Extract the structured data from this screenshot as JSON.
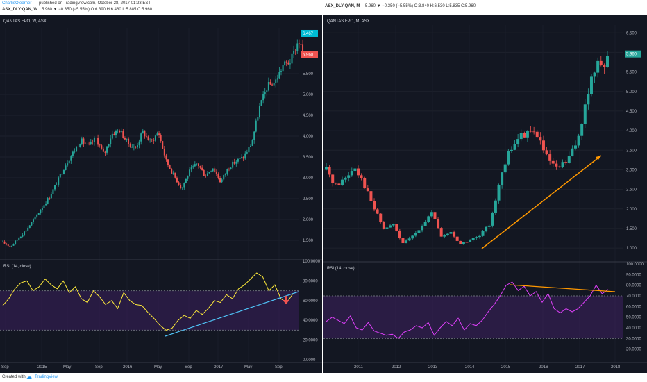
{
  "header": {
    "author": "CharlieOlearner",
    "published": "published on TradingView.com, October 28, 2017 01:23 EST",
    "left_ticker": "ASX_DLY:QAN, W",
    "left_quote": "5.960 ▼ −0.350 (−5.55%) O:6.390 H:6.460 L:5.885 C:5.960",
    "right_ticker": "ASX_DLY:QAN, M",
    "right_quote": "5.960 ▼ −0.350 (−5.55%) O:3.840 H:6.530 L:5.835 C:5.960"
  },
  "footer": {
    "created_with": "Created with",
    "brand": "TradingView"
  },
  "colors": {
    "background": "#131722",
    "up": "#26a69a",
    "down": "#ef5350",
    "rsi_left": "#ffeb3b",
    "rsi_right": "#e040fb",
    "trend_blue": "#4fc3f7",
    "trend_orange": "#ff9800",
    "rsi_band": "#3a1f5c"
  },
  "chart_data": [
    {
      "type": "candlestick",
      "title": "QANTAS FPO, W, ASX",
      "timeframe": "Weekly",
      "ylim": [
        1.1,
        6.6
      ],
      "y_ticks": [
        "1.500",
        "2.000",
        "2.500",
        "3.000",
        "3.500",
        "4.000",
        "4.500",
        "5.000",
        "5.500"
      ],
      "price_labels": {
        "high": "6.467",
        "last": "5.960"
      },
      "x_ticks": [
        "Sep",
        "2015",
        "May",
        "Sep",
        "2016",
        "May",
        "Sep",
        "2017",
        "May",
        "Sep"
      ],
      "x_range": [
        "2014-08",
        "2017-10"
      ],
      "close_path": [
        [
          "2014-08",
          1.45
        ],
        [
          "2014-09",
          1.35
        ],
        [
          "2014-11",
          1.75
        ],
        [
          "2014-12",
          2.0
        ],
        [
          "2015-02",
          2.55
        ],
        [
          "2015-03",
          2.9
        ],
        [
          "2015-04",
          3.3
        ],
        [
          "2015-05",
          3.6
        ],
        [
          "2015-06",
          3.9
        ],
        [
          "2015-07",
          3.75
        ],
        [
          "2015-08",
          3.95
        ],
        [
          "2015-09",
          3.55
        ],
        [
          "2015-10",
          4.05
        ],
        [
          "2015-11",
          4.15
        ],
        [
          "2015-12",
          3.85
        ],
        [
          "2016-01",
          3.7
        ],
        [
          "2016-02",
          4.1
        ],
        [
          "2016-03",
          3.85
        ],
        [
          "2016-04",
          4.1
        ],
        [
          "2016-05",
          3.4
        ],
        [
          "2016-06",
          3.05
        ],
        [
          "2016-07",
          2.75
        ],
        [
          "2016-08",
          3.15
        ],
        [
          "2016-09",
          3.35
        ],
        [
          "2016-10",
          3.05
        ],
        [
          "2016-11",
          3.25
        ],
        [
          "2016-12",
          2.9
        ],
        [
          "2017-01",
          3.25
        ],
        [
          "2017-02",
          3.4
        ],
        [
          "2017-03",
          3.5
        ],
        [
          "2017-04",
          3.85
        ],
        [
          "2017-05",
          4.7
        ],
        [
          "2017-06",
          5.2
        ],
        [
          "2017-07",
          5.3
        ],
        [
          "2017-08",
          5.7
        ],
        [
          "2017-09",
          5.8
        ],
        [
          "2017-10",
          6.3
        ],
        [
          "2017-10-20",
          5.96
        ]
      ],
      "rsi": {
        "label": "RSI (14, close)",
        "ylim": [
          0,
          100
        ],
        "y_ticks": [
          "0.0000",
          "20.0000",
          "40.0000",
          "60.0000",
          "80.0000",
          "100.0000"
        ],
        "band": [
          30,
          70
        ],
        "values": [
          55,
          62,
          72,
          78,
          80,
          70,
          74,
          82,
          76,
          72,
          80,
          68,
          74,
          62,
          58,
          70,
          64,
          56,
          60,
          52,
          68,
          60,
          56,
          55,
          48,
          42,
          35,
          30,
          32,
          40,
          45,
          42,
          50,
          46,
          52,
          60,
          58,
          66,
          62,
          72,
          76,
          82,
          88,
          84,
          70,
          76,
          62,
          58,
          67
        ],
        "annotation": "rising trendline from 2016 low"
      }
    },
    {
      "type": "candlestick",
      "title": "QANTAS FPO, M, ASX",
      "timeframe": "Monthly",
      "ylim": [
        0.7,
        6.7
      ],
      "y_ticks": [
        "1.000",
        "1.500",
        "2.000",
        "2.500",
        "3.000",
        "3.500",
        "4.000",
        "4.500",
        "5.000",
        "5.500",
        "6.000",
        "6.500"
      ],
      "price_labels": {
        "last": "5.960"
      },
      "x_ticks": [
        "2011",
        "2012",
        "2013",
        "2014",
        "2015",
        "2016",
        "2017",
        "2018"
      ],
      "x_range": [
        "2010-06",
        "2018-03"
      ],
      "close_path": [
        [
          "2010-06",
          3.0
        ],
        [
          "2010-09",
          2.6
        ],
        [
          "2010-12",
          2.8
        ],
        [
          "2011-03",
          3.1
        ],
        [
          "2011-06",
          2.6
        ],
        [
          "2011-09",
          2.0
        ],
        [
          "2011-12",
          1.5
        ],
        [
          "2012-03",
          1.6
        ],
        [
          "2012-06",
          1.1
        ],
        [
          "2012-09",
          1.3
        ],
        [
          "2012-12",
          1.6
        ],
        [
          "2013-03",
          1.9
        ],
        [
          "2013-06",
          1.3
        ],
        [
          "2013-09",
          1.4
        ],
        [
          "2013-12",
          1.1
        ],
        [
          "2014-03",
          1.2
        ],
        [
          "2014-06",
          1.3
        ],
        [
          "2014-09",
          1.6
        ],
        [
          "2014-12",
          2.6
        ],
        [
          "2015-03",
          3.4
        ],
        [
          "2015-06",
          3.8
        ],
        [
          "2015-09",
          4.0
        ],
        [
          "2015-12",
          3.9
        ],
        [
          "2016-03",
          3.3
        ],
        [
          "2016-06",
          3.0
        ],
        [
          "2016-09",
          3.2
        ],
        [
          "2016-12",
          3.6
        ],
        [
          "2017-03",
          4.6
        ],
        [
          "2017-06",
          5.6
        ],
        [
          "2017-09",
          5.8
        ],
        [
          "2017-10",
          5.96
        ]
      ],
      "trendline_note": "rising support arrow",
      "rsi": {
        "label": "RSI (14, close)",
        "ylim": [
          10,
          100
        ],
        "y_ticks": [
          "20.0000",
          "30.0000",
          "40.0000",
          "50.0000",
          "60.0000",
          "70.0000",
          "80.0000",
          "90.0000",
          "100.0000"
        ],
        "band": [
          30,
          70
        ],
        "values": [
          46,
          50,
          47,
          44,
          51,
          40,
          38,
          45,
          37,
          35,
          33,
          34,
          30,
          36,
          38,
          42,
          40,
          45,
          33,
          40,
          46,
          42,
          49,
          38,
          44,
          42,
          47,
          55,
          62,
          70,
          80,
          83,
          75,
          79,
          70,
          74,
          64,
          72,
          58,
          54,
          58,
          55,
          58,
          64,
          70,
          80,
          72,
          76
        ]
      }
    }
  ]
}
